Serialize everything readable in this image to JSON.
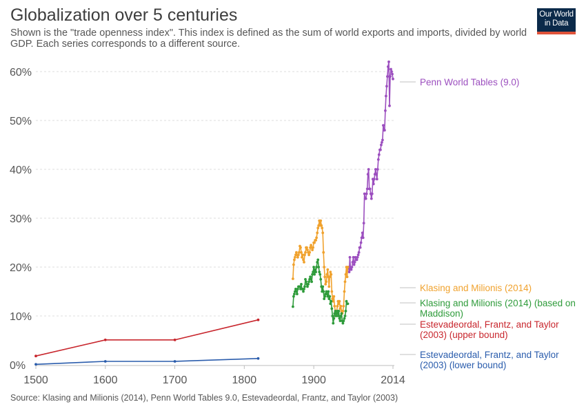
{
  "header": {
    "title": "Globalization over 5 centuries",
    "subtitle": "Shown is the \"trade openness index\". This index is defined as the sum of world exports and imports, divided by world GDP. Each series corresponds to a different source."
  },
  "logo": {
    "line1": "Our World",
    "line2": "in Data",
    "bg_color": "#0b2a4a",
    "bar_color": "#e0533a"
  },
  "footer": {
    "source": "Source: Klasing and Milionis (2014), Penn World Tables 9.0, Estevadeordal, Frantz, and Taylor (2003)"
  },
  "chart_data": {
    "type": "line",
    "xlim": [
      1500,
      2014
    ],
    "ylim": [
      0,
      62
    ],
    "x_ticks": [
      1500,
      1600,
      1700,
      1800,
      1900,
      2014
    ],
    "x_tick_labels": [
      "1500",
      "1600",
      "1700",
      "1800",
      "1900",
      "2014"
    ],
    "y_ticks": [
      0,
      10,
      20,
      30,
      40,
      50,
      60
    ],
    "y_tick_labels": [
      "0%",
      "10%",
      "20%",
      "30%",
      "40%",
      "50%",
      "60%"
    ],
    "grid": "horizontal-dashed",
    "legend": "right-inline-labels",
    "series": [
      {
        "name": "Penn World Tables (9.0)",
        "label_lines": [
          "Penn World Tables (9.0)"
        ],
        "color": "#9c4fbf",
        "x": [
          1950,
          1951,
          1952,
          1953,
          1954,
          1955,
          1956,
          1957,
          1958,
          1959,
          1960,
          1961,
          1962,
          1963,
          1964,
          1965,
          1966,
          1967,
          1968,
          1969,
          1970,
          1971,
          1972,
          1973,
          1974,
          1975,
          1976,
          1977,
          1978,
          1979,
          1980,
          1981,
          1982,
          1983,
          1984,
          1985,
          1986,
          1987,
          1988,
          1989,
          1990,
          1991,
          1992,
          1993,
          1994,
          1995,
          1996,
          1997,
          1998,
          1999,
          2000,
          2001,
          2002,
          2003,
          2004,
          2005,
          2006,
          2007,
          2008,
          2009,
          2010,
          2011,
          2012,
          2013,
          2014
        ],
        "y": [
          20,
          19,
          22,
          19.5,
          19.5,
          20,
          21,
          22,
          20.5,
          21,
          22,
          21.5,
          21.5,
          22,
          22.5,
          23,
          24,
          24,
          25,
          26,
          27,
          26,
          29,
          35,
          34,
          34,
          35,
          36,
          39,
          40,
          36,
          36,
          35,
          34,
          35,
          38,
          37,
          38,
          39,
          40,
          39,
          38,
          40,
          42,
          43,
          44,
          44,
          45,
          45.5,
          46,
          49,
          48,
          48,
          52,
          55,
          57,
          59,
          61,
          62,
          53,
          59,
          60.5,
          60,
          59.5,
          58.5
        ]
      },
      {
        "name": "Klasing and Milionis (2014)",
        "label_lines": [
          "Klasing and Milionis (2014)"
        ],
        "color": "#f0a22e",
        "x": [
          1870,
          1871,
          1872,
          1873,
          1874,
          1875,
          1876,
          1877,
          1878,
          1879,
          1880,
          1881,
          1882,
          1883,
          1884,
          1885,
          1886,
          1887,
          1888,
          1889,
          1890,
          1891,
          1892,
          1893,
          1894,
          1895,
          1896,
          1897,
          1898,
          1899,
          1900,
          1901,
          1902,
          1903,
          1904,
          1905,
          1906,
          1907,
          1908,
          1909,
          1910,
          1911,
          1912,
          1913,
          1914,
          1915,
          1916,
          1917,
          1918,
          1919,
          1920,
          1921,
          1922,
          1923,
          1924,
          1925,
          1926,
          1927,
          1928,
          1929,
          1930,
          1931,
          1932,
          1933,
          1934,
          1935,
          1936,
          1937,
          1938,
          1939,
          1940,
          1941,
          1942,
          1943,
          1944,
          1945,
          1946,
          1947,
          1948,
          1949
        ],
        "y": [
          17.6,
          20.5,
          21.5,
          22,
          22.5,
          23,
          22.5,
          22,
          22.5,
          23,
          24.3,
          24,
          23,
          22,
          22.5,
          21.5,
          21,
          22.5,
          23,
          24,
          24,
          23.5,
          23,
          22.5,
          23,
          24,
          24.5,
          24,
          23.5,
          24,
          25,
          25,
          25.5,
          25.5,
          26,
          27,
          28,
          28.5,
          29.5,
          28.5,
          29.5,
          28.5,
          28,
          27,
          23,
          20,
          18,
          16.5,
          17,
          18.5,
          19.5,
          18,
          16,
          18,
          19,
          18.5,
          15,
          13.5,
          13,
          14,
          12,
          11,
          10,
          11,
          12,
          13,
          12.5,
          13,
          11.5,
          12,
          11,
          10.5,
          11,
          12,
          15,
          17,
          18.5,
          20,
          18,
          20
        ]
      },
      {
        "name": "Klasing and Milionis (2014) (based on Maddison)",
        "label_lines": [
          "Klasing and Milionis (2014) (based on",
          "Maddison)"
        ],
        "color": "#2e9b3a",
        "x": [
          1870,
          1871,
          1872,
          1873,
          1874,
          1875,
          1876,
          1877,
          1878,
          1879,
          1880,
          1881,
          1882,
          1883,
          1884,
          1885,
          1886,
          1887,
          1888,
          1889,
          1890,
          1891,
          1892,
          1893,
          1894,
          1895,
          1896,
          1897,
          1898,
          1899,
          1900,
          1901,
          1902,
          1903,
          1904,
          1905,
          1906,
          1907,
          1908,
          1909,
          1910,
          1911,
          1912,
          1913,
          1914,
          1915,
          1916,
          1917,
          1918,
          1919,
          1920,
          1921,
          1922,
          1923,
          1924,
          1925,
          1926,
          1927,
          1928,
          1929,
          1930,
          1931,
          1932,
          1933,
          1934,
          1935,
          1936,
          1937,
          1938,
          1939,
          1940,
          1941,
          1942,
          1943,
          1944,
          1945,
          1946,
          1947,
          1948,
          1949
        ],
        "y": [
          11.9,
          14,
          14.5,
          15,
          15.5,
          15,
          14.5,
          15.5,
          16,
          16,
          16,
          15.5,
          16.5,
          15.5,
          15.5,
          15,
          15.5,
          16,
          17.5,
          17,
          16.5,
          16,
          16.5,
          17,
          17.5,
          18,
          17.5,
          17,
          18.5,
          19,
          20,
          18.5,
          19.5,
          19,
          20,
          21,
          21.5,
          20,
          19,
          18.5,
          17.5,
          16,
          15,
          16,
          15,
          13.5,
          14,
          14.5,
          15,
          14.5,
          14,
          15,
          13.5,
          14,
          12.5,
          13,
          11.5,
          10,
          8.5,
          9.5,
          10.5,
          11,
          10,
          10.5,
          11,
          10,
          11,
          9.5,
          9,
          10,
          10.5,
          9,
          8.5,
          9,
          9.5,
          10,
          11,
          13,
          12.5,
          12.5
        ]
      },
      {
        "name": "Estevadeordal, Frantz, and Taylor (2003) (upper bound)",
        "label_lines": [
          "Estevadeordal, Frantz, and Taylor",
          "(2003) (upper bound)"
        ],
        "color": "#c8262d",
        "x": [
          1500,
          1600,
          1700,
          1820
        ],
        "y": [
          1.8,
          5.1,
          5.1,
          9.2
        ]
      },
      {
        "name": "Estevadeordal, Frantz, and Taylor (2003) (lower bound)",
        "label_lines": [
          "Estevadeordal, Frantz, and Taylor",
          "(2003) (lower bound)"
        ],
        "color": "#2a5cac",
        "x": [
          1500,
          1600,
          1700,
          1820
        ],
        "y": [
          0.1,
          0.7,
          0.7,
          1.3
        ]
      }
    ]
  }
}
